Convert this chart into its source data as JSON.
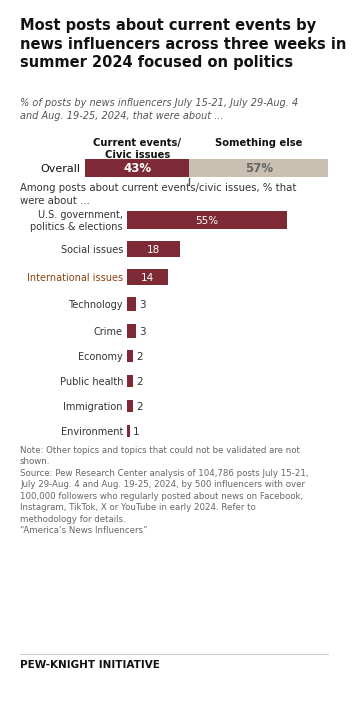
{
  "title": "Most posts about current events by\nnews influencers across three weeks in\nsummer 2024 focused on politics",
  "subtitle": "% of posts by news influencers July 15-21, July 29-Aug. 4\nand Aug. 19-25, 2024, that were about ...",
  "overall_label": "Overall",
  "col1_header": "Current events/\nCivic issues",
  "col2_header": "Something else",
  "overall_val1": 43,
  "overall_val2": 57,
  "overall_color1": "#7d2a36",
  "overall_color2": "#c9c0b1",
  "subhead": "Among posts about current events/civic issues, % that\nwere about ...",
  "categories": [
    "U.S. government,\npolitics & elections",
    "Social issues",
    "International issues",
    "Technology",
    "Crime",
    "Economy",
    "Public health",
    "Immigration",
    "Environment"
  ],
  "values": [
    55,
    18,
    14,
    3,
    3,
    2,
    2,
    2,
    1
  ],
  "bar_color": "#7d2a36",
  "note": "Note: Other topics and topics that could not be validated are not\nshown.\nSource: Pew Research Center analysis of 104,786 posts July 15-21,\nJuly 29-Aug. 4 and Aug. 19-25, 2024, by 500 influencers with over\n100,000 followers who regularly posted about news on Facebook,\nInstagram, TikTok, X or YouTube in early 2024. Refer to\nmethodology for details.\n“America’s News Influencers”",
  "footer": "PEW-KNIGHT INITIATIVE",
  "bg_color": "#ffffff",
  "intl_label_color": "#8b4a2a"
}
